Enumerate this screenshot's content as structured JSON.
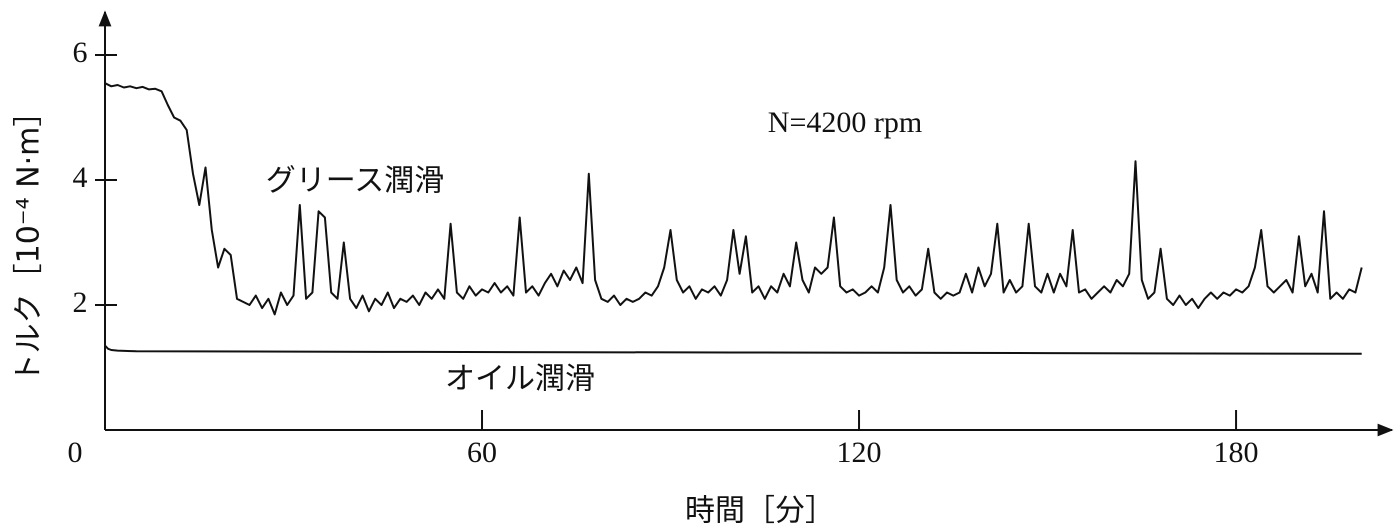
{
  "chart_data": {
    "type": "line",
    "xlabel": "時間［分］",
    "ylabel": "トルク［10⁻⁴ N·m］",
    "annotations": [
      "N=4200 rpm"
    ],
    "xlim": [
      0,
      204.5
    ],
    "ylim": [
      0,
      6.7
    ],
    "xticks": [
      0,
      60,
      120,
      180
    ],
    "yticks": [
      2,
      4,
      6
    ],
    "series": [
      {
        "name": "グリース潤滑",
        "color": "#111111",
        "x": [
          0,
          1,
          2,
          3,
          4,
          5,
          6,
          7,
          8,
          9,
          10,
          11,
          12,
          13,
          14,
          15,
          16,
          17,
          18,
          19,
          20,
          21,
          22,
          23,
          24,
          25,
          26,
          27,
          28,
          29,
          30,
          31,
          32,
          33,
          34,
          35,
          36,
          37,
          38,
          39,
          40,
          41,
          42,
          43,
          44,
          45,
          46,
          47,
          48,
          49,
          50,
          51,
          52,
          53,
          54,
          55,
          56,
          57,
          58,
          59,
          60,
          61,
          62,
          63,
          64,
          65,
          66,
          67,
          68,
          69,
          70,
          71,
          72,
          73,
          74,
          75,
          76,
          77,
          78,
          79,
          80,
          81,
          82,
          83,
          84,
          85,
          86,
          87,
          88,
          89,
          90,
          91,
          92,
          93,
          94,
          95,
          96,
          97,
          98,
          99,
          100,
          101,
          102,
          103,
          104,
          105,
          106,
          107,
          108,
          109,
          110,
          111,
          112,
          113,
          114,
          115,
          116,
          117,
          118,
          119,
          120,
          121,
          122,
          123,
          124,
          125,
          126,
          127,
          128,
          129,
          130,
          131,
          132,
          133,
          134,
          135,
          136,
          137,
          138,
          139,
          140,
          141,
          142,
          143,
          144,
          145,
          146,
          147,
          148,
          149,
          150,
          151,
          152,
          153,
          154,
          155,
          156,
          157,
          158,
          159,
          160,
          161,
          162,
          163,
          164,
          165,
          166,
          167,
          168,
          169,
          170,
          171,
          172,
          173,
          174,
          175,
          176,
          177,
          178,
          179,
          180,
          181,
          182,
          183,
          184,
          185,
          186,
          187,
          188,
          189,
          190,
          191,
          192,
          193,
          194,
          195,
          196,
          197,
          198,
          199,
          200
        ],
        "values": [
          5.55,
          5.5,
          5.52,
          5.48,
          5.5,
          5.47,
          5.49,
          5.45,
          5.46,
          5.42,
          5.2,
          5.0,
          4.95,
          4.8,
          4.1,
          3.6,
          4.2,
          3.2,
          2.6,
          2.9,
          2.8,
          2.1,
          2.05,
          2.0,
          2.15,
          1.95,
          2.1,
          1.85,
          2.2,
          2.0,
          2.15,
          3.6,
          2.1,
          2.2,
          3.5,
          3.4,
          2.2,
          2.1,
          3.0,
          2.1,
          1.95,
          2.15,
          1.9,
          2.1,
          2.0,
          2.2,
          1.95,
          2.1,
          2.05,
          2.15,
          2.0,
          2.2,
          2.1,
          2.25,
          2.1,
          3.3,
          2.2,
          2.1,
          2.3,
          2.15,
          2.25,
          2.2,
          2.35,
          2.2,
          2.3,
          2.15,
          3.4,
          2.2,
          2.3,
          2.15,
          2.35,
          2.5,
          2.3,
          2.55,
          2.4,
          2.6,
          2.35,
          4.1,
          2.4,
          2.1,
          2.05,
          2.15,
          2.0,
          2.1,
          2.05,
          2.1,
          2.2,
          2.15,
          2.3,
          2.6,
          3.2,
          2.4,
          2.2,
          2.3,
          2.1,
          2.25,
          2.2,
          2.3,
          2.15,
          2.4,
          3.2,
          2.5,
          3.1,
          2.2,
          2.3,
          2.1,
          2.3,
          2.2,
          2.5,
          2.3,
          3.0,
          2.4,
          2.2,
          2.6,
          2.5,
          2.6,
          3.4,
          2.3,
          2.2,
          2.25,
          2.15,
          2.2,
          2.3,
          2.2,
          2.6,
          3.6,
          2.4,
          2.2,
          2.3,
          2.15,
          2.25,
          2.9,
          2.2,
          2.1,
          2.2,
          2.15,
          2.2,
          2.5,
          2.2,
          2.6,
          2.3,
          2.5,
          3.3,
          2.2,
          2.4,
          2.2,
          2.3,
          3.3,
          2.3,
          2.2,
          2.5,
          2.2,
          2.5,
          2.3,
          3.2,
          2.2,
          2.25,
          2.1,
          2.2,
          2.3,
          2.2,
          2.4,
          2.3,
          2.5,
          4.3,
          2.4,
          2.1,
          2.2,
          2.9,
          2.1,
          2.0,
          2.15,
          2.0,
          2.1,
          1.95,
          2.1,
          2.2,
          2.1,
          2.2,
          2.15,
          2.25,
          2.2,
          2.3,
          2.6,
          3.2,
          2.3,
          2.2,
          2.3,
          2.4,
          2.2,
          3.1,
          2.3,
          2.5,
          2.2,
          3.5,
          2.1,
          2.2,
          2.1,
          2.25,
          2.2,
          2.6
        ]
      },
      {
        "name": "オイル潤滑",
        "color": "#111111",
        "x": [
          0,
          0.5,
          1,
          2,
          5,
          50,
          100,
          150,
          200
        ],
        "values": [
          1.35,
          1.3,
          1.28,
          1.27,
          1.26,
          1.25,
          1.24,
          1.23,
          1.22
        ]
      }
    ]
  }
}
